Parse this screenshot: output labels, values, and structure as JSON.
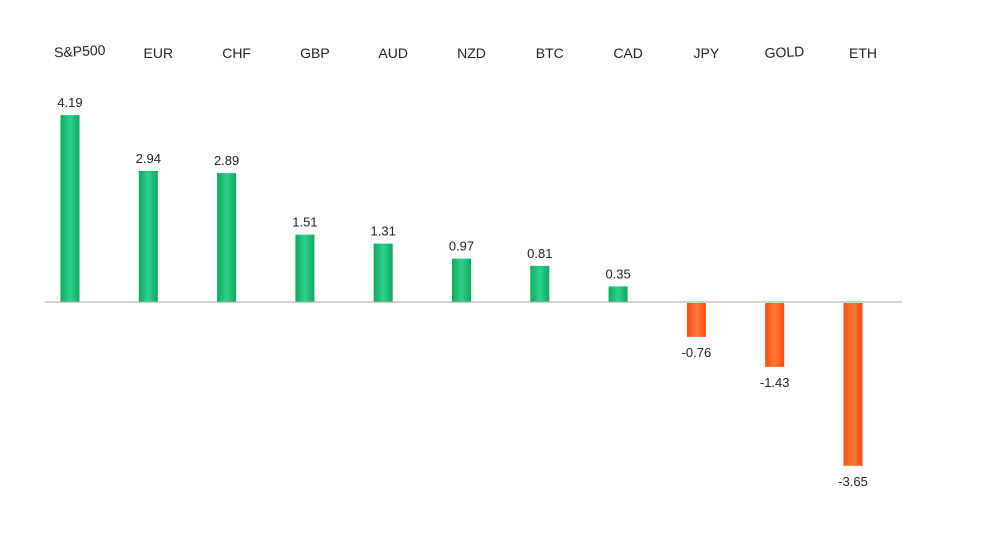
{
  "chart_data": {
    "type": "bar",
    "title": "",
    "xlabel": "",
    "ylabel": "",
    "categories": [
      "S&P500",
      "EUR",
      "CHF",
      "GBP",
      "AUD",
      "NZD",
      "BTC",
      "CAD",
      "JPY",
      "GOLD",
      "ETH"
    ],
    "values": [
      4.19,
      2.94,
      2.89,
      1.51,
      1.31,
      0.97,
      0.81,
      0.35,
      -0.76,
      -1.43,
      -3.65
    ],
    "value_labels": [
      "4.19",
      "2.94",
      "2.89",
      "1.51",
      "1.31",
      "0.97",
      "0.81",
      "0.35",
      "-0.76",
      "-1.43",
      "-3.65"
    ],
    "ylim": [
      -3.65,
      4.19
    ],
    "grid": false,
    "legend": "none",
    "category_label_position": "top",
    "colors": {
      "positive": "#0aaa60",
      "positive_light": "#2fd08a",
      "negative": "#ff4a0a",
      "negative_light": "#ff7a3a",
      "baseline": "#a6a6a6",
      "text": "#222222"
    }
  }
}
